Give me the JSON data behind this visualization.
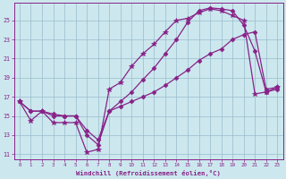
{
  "xlabel": "Windchill (Refroidissement éolien,°C)",
  "bg_color": "#cce8ee",
  "line_color": "#882288",
  "grid_color": "#99bbcc",
  "xlim": [
    -0.5,
    23.5
  ],
  "ylim": [
    10.5,
    26.8
  ],
  "xticks": [
    0,
    1,
    2,
    3,
    4,
    5,
    6,
    7,
    8,
    9,
    10,
    11,
    12,
    13,
    14,
    15,
    16,
    17,
    18,
    19,
    20,
    21,
    22,
    23
  ],
  "yticks": [
    11,
    13,
    15,
    17,
    19,
    21,
    23,
    25
  ],
  "lines": [
    {
      "x": [
        0,
        1,
        2,
        3,
        4,
        5,
        6,
        7,
        8,
        9,
        10,
        11,
        12,
        13,
        14,
        15,
        16,
        17,
        18,
        19,
        20,
        21,
        22,
        23
      ],
      "y": [
        16.5,
        14.5,
        15.5,
        14.3,
        14.3,
        14.3,
        11.2,
        11.5,
        17.8,
        18.5,
        20.2,
        21.5,
        22.5,
        23.8,
        25.0,
        25.2,
        25.8,
        26.2,
        26.0,
        25.5,
        25.0,
        17.3,
        17.5,
        18.0
      ],
      "marker": "*",
      "markersize": 4.0
    },
    {
      "x": [
        0,
        1,
        2,
        3,
        4,
        5,
        6,
        7,
        8,
        9,
        10,
        11,
        12,
        13,
        14,
        15,
        16,
        17,
        18,
        19,
        20,
        21,
        22,
        23
      ],
      "y": [
        16.5,
        15.5,
        15.5,
        15.0,
        15.0,
        15.0,
        13.0,
        12.0,
        15.5,
        16.5,
        17.5,
        18.8,
        20.0,
        21.5,
        23.0,
        24.8,
        26.0,
        26.3,
        26.2,
        26.0,
        24.5,
        21.8,
        17.5,
        17.8
      ],
      "marker": "D",
      "markersize": 2.5
    },
    {
      "x": [
        0,
        1,
        2,
        3,
        4,
        5,
        6,
        7,
        8,
        9,
        10,
        11,
        12,
        13,
        14,
        15,
        16,
        17,
        18,
        19,
        20,
        21,
        22,
        23
      ],
      "y": [
        16.5,
        15.5,
        15.5,
        15.2,
        15.0,
        15.0,
        13.5,
        12.5,
        15.5,
        16.0,
        16.5,
        17.0,
        17.5,
        18.2,
        19.0,
        19.8,
        20.8,
        21.5,
        22.0,
        23.0,
        23.5,
        23.8,
        17.8,
        18.0
      ],
      "marker": "D",
      "markersize": 2.5
    }
  ]
}
